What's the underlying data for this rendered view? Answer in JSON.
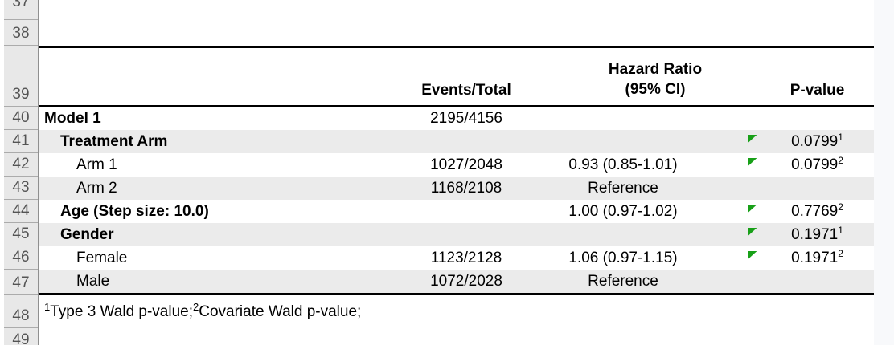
{
  "gutter": {
    "rows": [
      "37",
      "38",
      "39",
      "40",
      "41",
      "42",
      "43",
      "44",
      "45",
      "46",
      "47",
      "48",
      "49"
    ]
  },
  "table": {
    "header": {
      "events": "Events/Total",
      "hr_line1": "Hazard Ratio",
      "hr_line2": "(95% CI)",
      "pvalue": "P-value"
    },
    "rows": [
      {
        "label": "Model 1",
        "events": "2195/4156",
        "hr": "",
        "p": "",
        "p_sup": ""
      },
      {
        "label": "Treatment Arm",
        "events": "",
        "hr": "",
        "p": "0.0799",
        "p_sup": "1"
      },
      {
        "label": "Arm 1",
        "events": "1027/2048",
        "hr": "0.93 (0.85-1.01)",
        "p": "0.0799",
        "p_sup": "2"
      },
      {
        "label": "Arm 2",
        "events": "1168/2108",
        "hr": "Reference",
        "p": "",
        "p_sup": ""
      },
      {
        "label": "Age (Step size: 10.0)",
        "events": "",
        "hr": "1.00 (0.97-1.02)",
        "p": "0.7769",
        "p_sup": "2"
      },
      {
        "label": "Gender",
        "events": "",
        "hr": "",
        "p": "0.1971",
        "p_sup": "1"
      },
      {
        "label": "Female",
        "events": "1123/2128",
        "hr": "1.06 (0.97-1.15)",
        "p": "0.1971",
        "p_sup": "2"
      },
      {
        "label": "Male",
        "events": "1072/2028",
        "hr": "Reference",
        "p": "",
        "p_sup": ""
      }
    ],
    "footnote": {
      "sup1": "1",
      "text1": "Type 3 Wald p-value;",
      "sup2": "2",
      "text2": "Covariate Wald p-value;"
    }
  },
  "icons": {
    "error_indicator": "green-corner-triangle"
  },
  "colors": {
    "error_indicator_green": "#18a018",
    "band_gray": "#ebebeb",
    "gutter_gray": "#e8e8e8",
    "border_black": "#000000"
  }
}
